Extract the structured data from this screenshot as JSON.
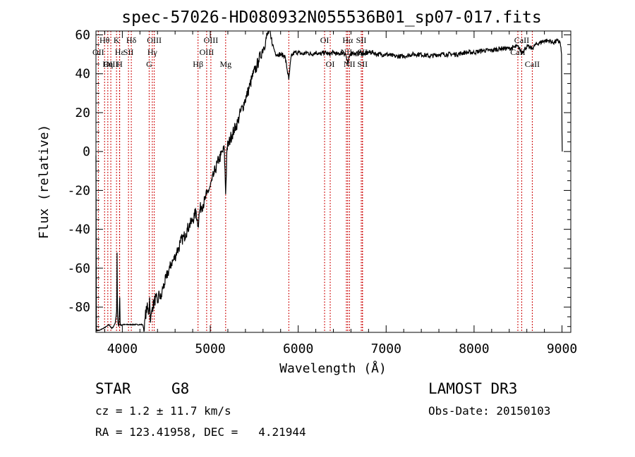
{
  "chart_data": {
    "type": "line",
    "title": "spec-57026-HD080932N055536B01_sp07-017.fits",
    "xlabel": "Wavelength (Å)",
    "ylabel": "Flux (relative)",
    "xlim": [
      3700,
      9100
    ],
    "ylim": [
      -93,
      62
    ],
    "xticks": [
      4000,
      5000,
      6000,
      7000,
      8000,
      9000
    ],
    "yticks": [
      -80,
      -60,
      -40,
      -20,
      0,
      20,
      40,
      60
    ],
    "grid": false,
    "series_color": "#000000",
    "line_color": "#cc0000",
    "lines": [
      {
        "label": "Hθ",
        "wl": 3798,
        "row": 0
      },
      {
        "label": "OII",
        "wl": 3727,
        "row": 1
      },
      {
        "label": "OIII",
        "wl": 3869,
        "row": 2
      },
      {
        "label": "Hη",
        "wl": 3835,
        "row": 2
      },
      {
        "label": "K",
        "wl": 3934,
        "row": 0
      },
      {
        "label": "Hε",
        "wl": 3970,
        "row": 1
      },
      {
        "label": "H",
        "wl": 3968,
        "row": 2
      },
      {
        "label": "SII",
        "wl": 4070,
        "row": 1
      },
      {
        "label": "Hδ",
        "wl": 4102,
        "row": 0
      },
      {
        "label": "OIII",
        "wl": 4363,
        "row": 0
      },
      {
        "label": "Hγ",
        "wl": 4341,
        "row": 1
      },
      {
        "label": "G",
        "wl": 4305,
        "row": 2
      },
      {
        "label": "Hβ",
        "wl": 4861,
        "row": 2
      },
      {
        "label": "OIII",
        "wl": 5007,
        "row": 0
      },
      {
        "label": "OIII",
        "wl": 4959,
        "row": 1
      },
      {
        "label": "Mg",
        "wl": 5175,
        "row": 2
      },
      {
        "label": "",
        "wl": 5893,
        "row": -1
      },
      {
        "label": "OI",
        "wl": 6300,
        "row": 0
      },
      {
        "label": "OI",
        "wl": 6364,
        "row": 2
      },
      {
        "label": "Hα",
        "wl": 6563,
        "row": 0
      },
      {
        "label": "NII",
        "wl": 6548,
        "row": 1
      },
      {
        "label": "NII",
        "wl": 6583,
        "row": 2
      },
      {
        "label": "SII",
        "wl": 6717,
        "row": 0
      },
      {
        "label": "SII",
        "wl": 6731,
        "row": 1
      },
      {
        "label": "SII",
        "wl": 6731,
        "row": 2
      },
      {
        "label": "CaII",
        "wl": 8542,
        "row": 0
      },
      {
        "label": "CaII",
        "wl": 8498,
        "row": 1
      },
      {
        "label": "CaII",
        "wl": 8662,
        "row": 2
      }
    ],
    "spectrum": [
      [
        3700,
        -2
      ],
      [
        3705,
        -92
      ],
      [
        3740,
        -92
      ],
      [
        3780,
        -91
      ],
      [
        3820,
        -90
      ],
      [
        3850,
        -89
      ],
      [
        3880,
        -91
      ],
      [
        3900,
        -90
      ],
      [
        3920,
        -88
      ],
      [
        3935,
        -82
      ],
      [
        3940,
        -52
      ],
      [
        3945,
        -84
      ],
      [
        3950,
        -88
      ],
      [
        3960,
        -90
      ],
      [
        3970,
        -75
      ],
      [
        3975,
        -88
      ],
      [
        3985,
        -89
      ],
      [
        4000,
        -89
      ],
      [
        4050,
        -89
      ],
      [
        4100,
        -89
      ],
      [
        4150,
        -89
      ],
      [
        4200,
        -89
      ],
      [
        4230,
        -89
      ],
      [
        4250,
        -92
      ],
      [
        4260,
        -85
      ],
      [
        4280,
        -80
      ],
      [
        4300,
        -83
      ],
      [
        4310,
        -75
      ],
      [
        4320,
        -88
      ],
      [
        4340,
        -80
      ],
      [
        4360,
        -78
      ],
      [
        4380,
        -75
      ],
      [
        4400,
        -78
      ],
      [
        4420,
        -73
      ],
      [
        4440,
        -76
      ],
      [
        4460,
        -70
      ],
      [
        4480,
        -68
      ],
      [
        4500,
        -65
      ],
      [
        4520,
        -62
      ],
      [
        4540,
        -60
      ],
      [
        4560,
        -57
      ],
      [
        4580,
        -56
      ],
      [
        4600,
        -54
      ],
      [
        4620,
        -51
      ],
      [
        4640,
        -50
      ],
      [
        4660,
        -47
      ],
      [
        4680,
        -45
      ],
      [
        4700,
        -44
      ],
      [
        4720,
        -42
      ],
      [
        4740,
        -40
      ],
      [
        4760,
        -38
      ],
      [
        4780,
        -37
      ],
      [
        4800,
        -35
      ],
      [
        4820,
        -33
      ],
      [
        4840,
        -31
      ],
      [
        4861,
        -38
      ],
      [
        4880,
        -30
      ],
      [
        4900,
        -28
      ],
      [
        4920,
        -27
      ],
      [
        4940,
        -25
      ],
      [
        4960,
        -22
      ],
      [
        4980,
        -20
      ],
      [
        5000,
        -18
      ],
      [
        5020,
        -15
      ],
      [
        5040,
        -12
      ],
      [
        5060,
        -9
      ],
      [
        5080,
        -6
      ],
      [
        5100,
        -4
      ],
      [
        5120,
        -2
      ],
      [
        5140,
        0
      ],
      [
        5160,
        1
      ],
      [
        5175,
        -22
      ],
      [
        5190,
        2
      ],
      [
        5210,
        4
      ],
      [
        5230,
        7
      ],
      [
        5250,
        9
      ],
      [
        5270,
        11
      ],
      [
        5290,
        13
      ],
      [
        5310,
        15
      ],
      [
        5330,
        18
      ],
      [
        5350,
        21
      ],
      [
        5370,
        23
      ],
      [
        5390,
        26
      ],
      [
        5410,
        28
      ],
      [
        5430,
        31
      ],
      [
        5450,
        34
      ],
      [
        5470,
        37
      ],
      [
        5490,
        40
      ],
      [
        5510,
        42
      ],
      [
        5530,
        44
      ],
      [
        5550,
        47
      ],
      [
        5570,
        49
      ],
      [
        5590,
        52
      ],
      [
        5610,
        54
      ],
      [
        5630,
        57
      ],
      [
        5650,
        60
      ],
      [
        5670,
        62
      ],
      [
        5690,
        58
      ],
      [
        5710,
        55
      ],
      [
        5730,
        52
      ],
      [
        5750,
        50
      ],
      [
        5800,
        50
      ],
      [
        5850,
        49
      ],
      [
        5893,
        37
      ],
      [
        5920,
        49
      ],
      [
        5960,
        51
      ],
      [
        6000,
        51
      ],
      [
        6050,
        50
      ],
      [
        6100,
        51
      ],
      [
        6150,
        50
      ],
      [
        6200,
        51
      ],
      [
        6250,
        50
      ],
      [
        6300,
        51
      ],
      [
        6350,
        50
      ],
      [
        6400,
        51
      ],
      [
        6450,
        50
      ],
      [
        6500,
        51
      ],
      [
        6540,
        50
      ],
      [
        6563,
        45
      ],
      [
        6590,
        50
      ],
      [
        6620,
        51
      ],
      [
        6650,
        50
      ],
      [
        6700,
        51
      ],
      [
        6750,
        50
      ],
      [
        6800,
        51
      ],
      [
        6850,
        51
      ],
      [
        6900,
        50
      ],
      [
        6950,
        50
      ],
      [
        7000,
        50
      ],
      [
        7100,
        49
      ],
      [
        7200,
        49
      ],
      [
        7300,
        50
      ],
      [
        7400,
        50
      ],
      [
        7500,
        49
      ],
      [
        7600,
        50
      ],
      [
        7700,
        50
      ],
      [
        7800,
        50
      ],
      [
        7900,
        51
      ],
      [
        8000,
        51
      ],
      [
        8100,
        52
      ],
      [
        8200,
        52
      ],
      [
        8300,
        53
      ],
      [
        8400,
        53
      ],
      [
        8500,
        54
      ],
      [
        8542,
        51
      ],
      [
        8600,
        54
      ],
      [
        8662,
        53
      ],
      [
        8700,
        55
      ],
      [
        8750,
        56
      ],
      [
        8800,
        57
      ],
      [
        8850,
        57
      ],
      [
        8900,
        56
      ],
      [
        8950,
        57
      ],
      [
        8980,
        56
      ],
      [
        8995,
        50
      ],
      [
        9000,
        10
      ],
      [
        9003,
        0
      ]
    ]
  },
  "footer": {
    "object_type": "STAR",
    "subclass": "G8",
    "survey": "LAMOST DR3",
    "cz": "cz = 1.2 ± 11.7 km/s",
    "obs_date": "Obs-Date: 20150103",
    "coords": "RA = 123.41958, DEC =   4.21944"
  }
}
